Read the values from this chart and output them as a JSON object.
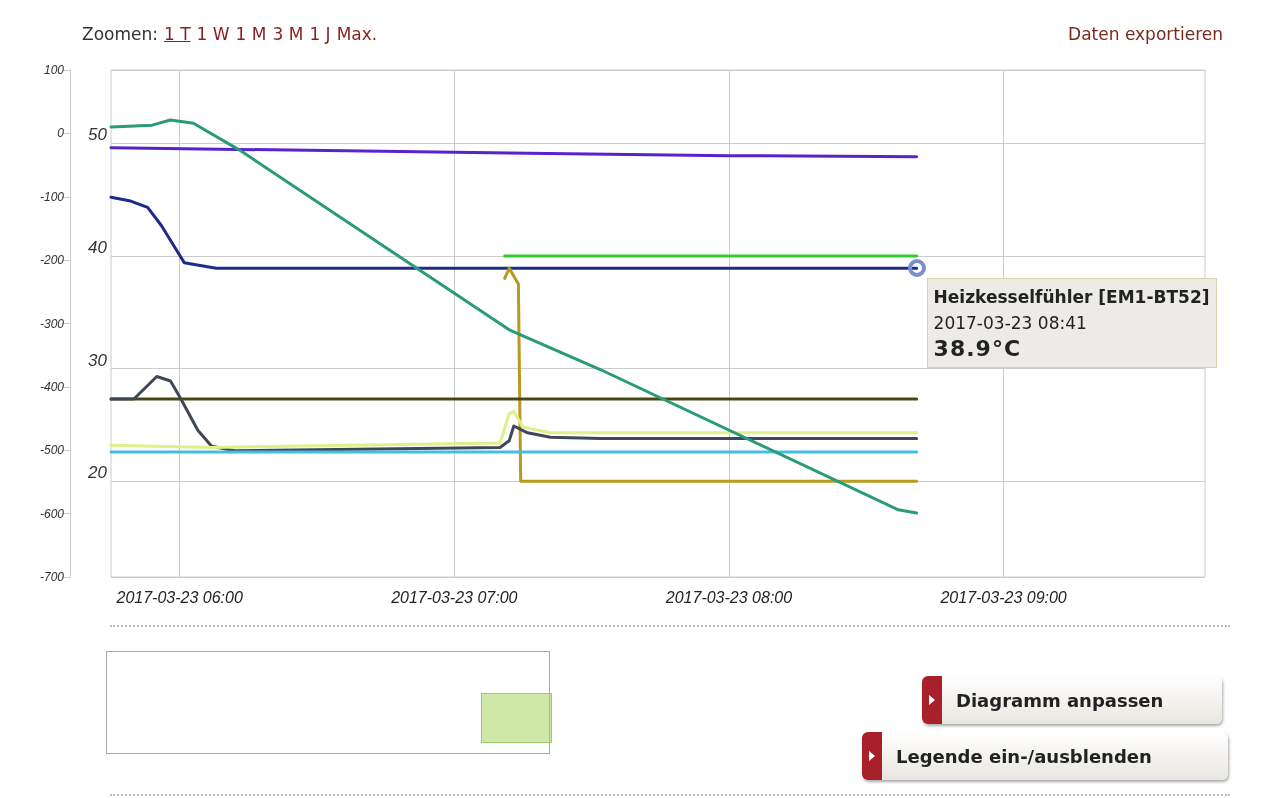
{
  "chart_data": {
    "type": "line",
    "xlim": [
      "2017-03-23T05:45",
      "2017-03-23T09:44"
    ],
    "xticks": [
      {
        "value": "2017-03-23T06:00",
        "label": "2017-03-23 06:00"
      },
      {
        "value": "2017-03-23T07:00",
        "label": "2017-03-23 07:00"
      },
      {
        "value": "2017-03-23T08:00",
        "label": "2017-03-23 08:00"
      },
      {
        "value": "2017-03-23T09:00",
        "label": "2017-03-23 09:00"
      }
    ],
    "ylim": [
      -700,
      100
    ],
    "yticks": [
      -700,
      -600,
      -500,
      -400,
      -300,
      -200,
      -100,
      0,
      100
    ],
    "y2lim": [
      11.5,
      56.5
    ],
    "y2ticks": [
      20,
      30,
      40,
      50
    ],
    "grid": true,
    "marker": "none",
    "line_style": "solid",
    "series": [
      {
        "color": "#5a22cc",
        "axis": "y2",
        "x": [
          "2017-03-23T05:45",
          "2017-03-23T07:00",
          "2017-03-23T08:00",
          "2017-03-23T08:41"
        ],
        "values": [
          49.6,
          49.2,
          48.9,
          48.8
        ]
      },
      {
        "color": "#1c2c8c",
        "axis": "y2",
        "x": [
          "2017-03-23T05:45",
          "2017-03-23T05:49",
          "2017-03-23T05:53",
          "2017-03-23T05:56",
          "2017-03-23T06:01",
          "2017-03-23T06:08",
          "2017-03-23T08:41"
        ],
        "values": [
          45.2,
          44.9,
          44.3,
          42.7,
          39.4,
          38.9,
          38.9
        ]
      },
      {
        "color": "#33cc33",
        "axis": "y2",
        "x": [
          "2017-03-23T07:11",
          "2017-03-23T08:41"
        ],
        "values": [
          40.0,
          40.0
        ]
      },
      {
        "color": "#b89a20",
        "axis": "y2",
        "x": [
          "2017-03-23T07:11",
          "2017-03-23T07:12",
          "2017-03-23T07:14",
          "2017-03-23T07:14:30",
          "2017-03-23T08:41"
        ],
        "values": [
          38.0,
          38.9,
          37.5,
          20.0,
          20.0
        ]
      },
      {
        "color": "#4a4812",
        "axis": "y2",
        "x": [
          "2017-03-23T05:45",
          "2017-03-23T08:41"
        ],
        "values": [
          27.3,
          27.3
        ]
      },
      {
        "color": "#404858",
        "axis": "y2",
        "x": [
          "2017-03-23T05:45",
          "2017-03-23T05:50",
          "2017-03-23T05:55",
          "2017-03-23T05:58",
          "2017-03-23T06:00",
          "2017-03-23T06:04",
          "2017-03-23T06:07",
          "2017-03-23T06:12",
          "2017-03-23T07:10",
          "2017-03-23T07:12",
          "2017-03-23T07:13",
          "2017-03-23T07:16",
          "2017-03-23T07:21",
          "2017-03-23T07:32",
          "2017-03-23T08:41"
        ],
        "values": [
          27.3,
          27.3,
          29.3,
          28.9,
          27.5,
          24.5,
          23.1,
          22.7,
          23.0,
          23.6,
          24.9,
          24.3,
          23.9,
          23.8,
          23.8
        ]
      },
      {
        "color": "#e0ef8a",
        "axis": "y2",
        "x": [
          "2017-03-23T05:45",
          "2017-03-23T06:07",
          "2017-03-23T07:10",
          "2017-03-23T07:12",
          "2017-03-23T07:13",
          "2017-03-23T07:15",
          "2017-03-23T07:21",
          "2017-03-23T08:41"
        ],
        "values": [
          23.2,
          23.0,
          23.4,
          26.0,
          26.2,
          24.8,
          24.3,
          24.3
        ]
      },
      {
        "color": "#40c0e0",
        "axis": "y2",
        "x": [
          "2017-03-23T05:45",
          "2017-03-23T08:41"
        ],
        "values": [
          22.6,
          22.6
        ]
      },
      {
        "color": "#2a9a78",
        "x": [
          "2017-03-23T05:45",
          "2017-03-23T05:54",
          "2017-03-23T05:58",
          "2017-03-23T06:03",
          "2017-03-23T06:13",
          "2017-03-23T07:12",
          "2017-03-23T07:32",
          "2017-03-23T08:37",
          "2017-03-23T08:41"
        ],
        "values": [
          10,
          13,
          21,
          16,
          -26,
          -310,
          -373,
          -594,
          -599
        ]
      }
    ],
    "annotations": [
      "Zoomen:",
      "1 T",
      "1 W",
      "1 M",
      "3 M",
      "1 J",
      "Max.",
      "Daten exportieren",
      "Heizkesselfühler [EM1-BT52]",
      "2017-03-23 08:41",
      "38.9°C",
      "Diagramm anpassen",
      "Legende ein-/ausblenden"
    ]
  }
}
